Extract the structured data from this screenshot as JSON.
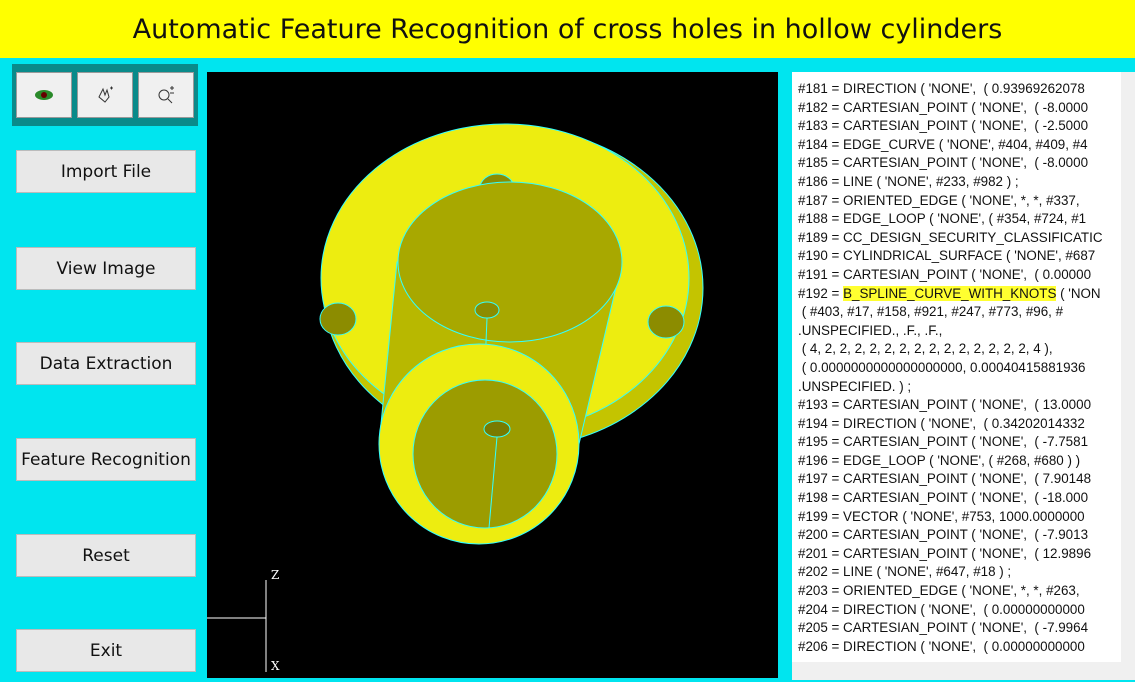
{
  "header": {
    "title": "Automatic Feature Recognition of cross holes in hollow cylinders"
  },
  "buttons": [
    "Import File",
    "View Image",
    "Data Extraction",
    "Feature Recognition",
    "Reset",
    "Exit"
  ],
  "viewport": {
    "axis_labels": [
      "Z",
      "X"
    ]
  },
  "text_panel": {
    "lines": [
      "#181 = DIRECTION ( 'NONE',  ( 0.93969262078",
      "#182 = CARTESIAN_POINT ( 'NONE',  ( -8.0000",
      "#183 = CARTESIAN_POINT ( 'NONE',  ( -2.5000",
      "#184 = EDGE_CURVE ( 'NONE', #404, #409, #4",
      "#185 = CARTESIAN_POINT ( 'NONE',  ( -8.0000",
      "#186 = LINE ( 'NONE', #233, #982 ) ;",
      "#187 = ORIENTED_EDGE ( 'NONE', *, *, #337,",
      "#188 = EDGE_LOOP ( 'NONE', ( #354, #724, #1",
      "#189 = CC_DESIGN_SECURITY_CLASSIFICATIC",
      "#190 = CYLINDRICAL_SURFACE ( 'NONE', #687",
      "#191 = CARTESIAN_POINT ( 'NONE',  ( 0.00000",
      {
        "text": "#192 = ",
        "highlight": "B_SPLINE_CURVE_WITH_KNOTS",
        "rest": " ( 'NON"
      },
      " ( #403, #17, #158, #921, #247, #773, #96, #",
      ".UNSPECIFIED., .F., .F.,",
      " ( 4, 2, 2, 2, 2, 2, 2, 2, 2, 2, 2, 2, 2, 2, 2, 4 ),",
      " ( 0.0000000000000000000, 0.00040415881936",
      ".UNSPECIFIED. ) ;",
      "#193 = CARTESIAN_POINT ( 'NONE',  ( 13.0000",
      "#194 = DIRECTION ( 'NONE',  ( 0.34202014332",
      "#195 = CARTESIAN_POINT ( 'NONE',  ( -7.7581",
      "#196 = EDGE_LOOP ( 'NONE', ( #268, #680 ) )",
      "#197 = CARTESIAN_POINT ( 'NONE',  ( 7.90148",
      "#198 = CARTESIAN_POINT ( 'NONE',  ( -18.000",
      "#199 = VECTOR ( 'NONE', #753, 1000.0000000",
      "#200 = CARTESIAN_POINT ( 'NONE',  ( -7.9013",
      "#201 = CARTESIAN_POINT ( 'NONE',  ( 12.9896",
      "#202 = LINE ( 'NONE', #647, #18 ) ;",
      "#203 = ORIENTED_EDGE ( 'NONE', *, *, #263,",
      "#204 = DIRECTION ( 'NONE',  ( 0.00000000000",
      "#205 = CARTESIAN_POINT ( 'NONE',  ( -7.9964",
      "#206 = DIRECTION ( 'NONE',  ( 0.00000000000"
    ]
  }
}
